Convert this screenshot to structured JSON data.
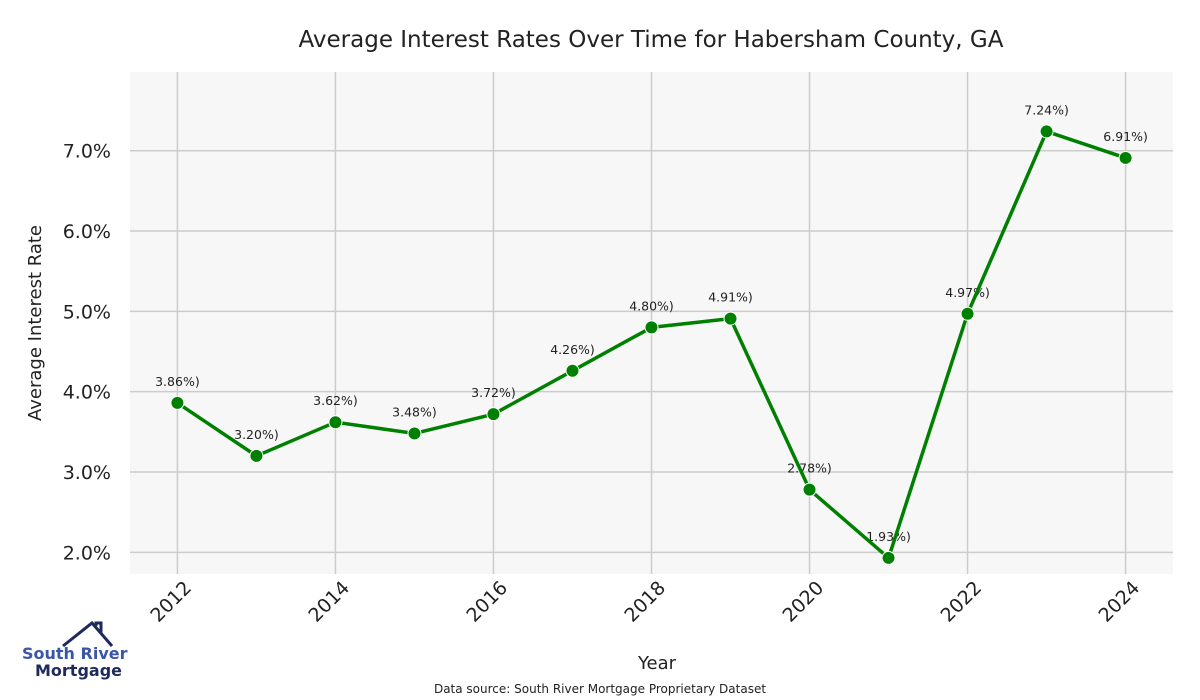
{
  "chart_data": {
    "type": "line",
    "title": "Average Interest Rates Over Time for Habersham County, GA",
    "xlabel": "Year",
    "ylabel": "Average Interest Rate",
    "x": [
      2012,
      2013,
      2014,
      2015,
      2016,
      2017,
      2018,
      2019,
      2020,
      2021,
      2022,
      2023,
      2024
    ],
    "series": [
      {
        "name": "Average Interest Rate",
        "color": "#008000",
        "values": [
          3.86,
          3.2,
          3.62,
          3.48,
          3.72,
          4.26,
          4.8,
          4.91,
          2.78,
          1.93,
          4.97,
          7.24,
          6.91
        ]
      }
    ],
    "data_labels": [
      "3.86%)",
      "3.20%)",
      "3.62%)",
      "3.48%)",
      "3.72%)",
      "4.26%)",
      "4.80%)",
      "4.91%)",
      "2.78%)",
      "1.93%)",
      "4.97%)",
      "7.24%)",
      "6.91%)"
    ],
    "xticks": [
      2012,
      2014,
      2016,
      2018,
      2020,
      2022,
      2024
    ],
    "xtick_labels": [
      "2012",
      "2014",
      "2016",
      "2018",
      "2020",
      "2022",
      "2024"
    ],
    "yticks": [
      2,
      3,
      4,
      5,
      6,
      7
    ],
    "ytick_labels": [
      "2.0%",
      "3.0%",
      "4.0%",
      "5.0%",
      "6.0%",
      "7.0%"
    ],
    "xlim": [
      2011.4,
      2024.6
    ],
    "ylim": [
      1.73,
      7.98
    ],
    "grid": true,
    "background": "#f7f7f7"
  },
  "source": "Data source: South River Mortgage Proprietary Dataset",
  "logo": {
    "line1": "South River",
    "line2": "Mortgage"
  }
}
